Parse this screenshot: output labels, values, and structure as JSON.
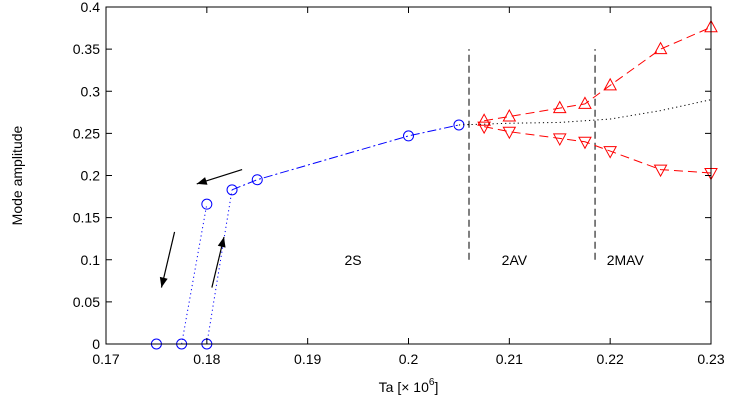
{
  "chart_data": {
    "type": "line",
    "xlabel": "Ta [× 10",
    "xlabel_exponent": "6",
    "xlabel_close": "]",
    "ylabel": "Mode amplitude",
    "xlim": [
      0.17,
      0.23
    ],
    "ylim": [
      0,
      0.4
    ],
    "xticks": [
      0.17,
      0.18,
      0.19,
      0.2,
      0.21,
      0.22,
      0.23
    ],
    "xtick_labels": [
      "0.17",
      "0.18",
      "0.19",
      "0.2",
      "0.21",
      "0.22",
      "0.23"
    ],
    "yticks": [
      0,
      0.05,
      0.1,
      0.15,
      0.2,
      0.25,
      0.3,
      0.35,
      0.4
    ],
    "ytick_labels": [
      "0",
      "0.05",
      "0.1",
      "0.15",
      "0.2",
      "0.25",
      "0.3",
      "0.35",
      "0.4"
    ],
    "grid": false,
    "series": [
      {
        "marker": "circle",
        "color": "#0000ff",
        "line": "dashdot",
        "x": [
          0.1825,
          0.185,
          0.2,
          0.205
        ],
        "y": [
          0.183,
          0.195,
          0.247,
          0.26
        ]
      },
      {
        "marker": "circle",
        "color": "#0000ff",
        "line": "none",
        "x": [
          0.175,
          0.1775,
          0.18,
          0.18
        ],
        "y": [
          0.0,
          0.0,
          0.0,
          0.166
        ]
      },
      {
        "marker": "none",
        "color": "#0000ff",
        "line": "dotted",
        "x": [
          0.1775,
          0.18
        ],
        "y": [
          0.0,
          0.166
        ]
      },
      {
        "marker": "none",
        "color": "#0000ff",
        "line": "dotted",
        "x": [
          0.18,
          0.1825
        ],
        "y": [
          0.0,
          0.183
        ]
      },
      {
        "marker": "triangle-up",
        "color": "#ff0000",
        "line": "dashed",
        "x": [
          0.2075,
          0.21,
          0.215,
          0.2175,
          0.22,
          0.225,
          0.23
        ],
        "y": [
          0.265,
          0.27,
          0.28,
          0.285,
          0.307,
          0.35,
          0.376
        ]
      },
      {
        "marker": "triangle-down",
        "color": "#ff0000",
        "line": "dashed",
        "x": [
          0.2075,
          0.21,
          0.215,
          0.2175,
          0.22,
          0.225,
          0.23
        ],
        "y": [
          0.258,
          0.252,
          0.244,
          0.24,
          0.229,
          0.207,
          0.203
        ]
      },
      {
        "marker": "none",
        "color": "#000000",
        "line": "dotted",
        "x": [
          0.205,
          0.21,
          0.215,
          0.22,
          0.225,
          0.23
        ],
        "y": [
          0.26,
          0.262,
          0.263,
          0.267,
          0.277,
          0.29
        ]
      }
    ],
    "vlines": [
      {
        "x": 0.206,
        "y": [
          0.1,
          0.35
        ]
      },
      {
        "x": 0.2185,
        "y": [
          0.1,
          0.35
        ]
      }
    ],
    "region_labels": [
      {
        "text": "2S",
        "x": 0.1945,
        "y": 0.1
      },
      {
        "text": "2AV",
        "x": 0.2105,
        "y": 0.1
      },
      {
        "text": "2MAV",
        "x": 0.2215,
        "y": 0.1
      }
    ],
    "arrows": [
      {
        "from": [
          0.1835,
          0.207
        ],
        "to": [
          0.179,
          0.19
        ]
      },
      {
        "from": [
          0.1768,
          0.133
        ],
        "to": [
          0.1755,
          0.067
        ]
      },
      {
        "from": [
          0.1805,
          0.067
        ],
        "to": [
          0.1817,
          0.127
        ]
      }
    ]
  }
}
